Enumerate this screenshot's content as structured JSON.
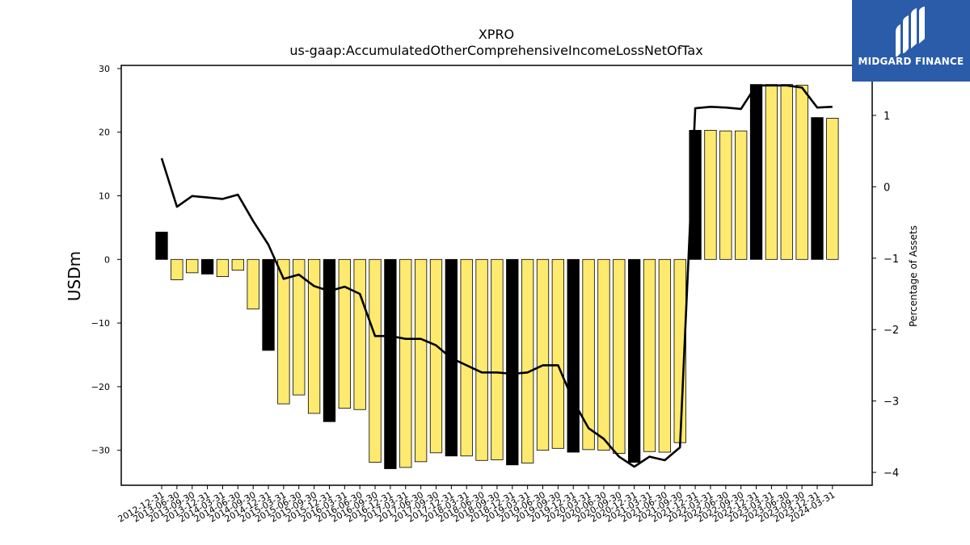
{
  "brand": {
    "name": "MIDGARD FINANCE",
    "color": "#2a5caa"
  },
  "chart_data": {
    "type": "bar",
    "title": "XPRO",
    "subtitle": "us-gaap:AccumulatedOtherComprehensiveIncomeLossNetOfTax",
    "ylabel": "USDm",
    "y2label": "Percentage of Assets",
    "ylim": [
      -35.5,
      30.5
    ],
    "y2lim": [
      -4.18,
      1.7
    ],
    "yticks": [
      30,
      20,
      10,
      0,
      -10,
      -20,
      -30
    ],
    "y2ticks": [
      1,
      0,
      -1,
      -2,
      -3,
      -4
    ],
    "grid": false,
    "categories": [
      "2012-12-31",
      "2013-06-30",
      "2013-09-30",
      "2013-12-31",
      "2014-03-31",
      "2014-06-30",
      "2014-09-30",
      "2014-12-31",
      "2015-03-31",
      "2015-06-30",
      "2015-09-30",
      "2015-12-31",
      "2016-03-31",
      "2016-06-30",
      "2016-09-30",
      "2016-12-31",
      "2017-03-31",
      "2017-06-30",
      "2017-09-30",
      "2017-12-31",
      "2018-03-31",
      "2018-06-30",
      "2018-09-30",
      "2018-12-31",
      "2019-03-31",
      "2019-06-30",
      "2019-09-30",
      "2019-12-31",
      "2020-03-31",
      "2020-06-30",
      "2020-09-30",
      "2020-12-31",
      "2021-03-31",
      "2021-06-30",
      "2021-09-30",
      "2021-12-31",
      "2022-03-31",
      "2022-06-30",
      "2022-09-30",
      "2022-12-31",
      "2023-03-31",
      "2023-06-30",
      "2023-09-30",
      "2023-12-31",
      "2024-03-31"
    ],
    "values": [
      4.3,
      -3.2,
      -2.1,
      -2.3,
      -2.7,
      -1.7,
      -7.8,
      -14.3,
      -22.7,
      -21.3,
      -24.2,
      -25.5,
      -23.4,
      -23.6,
      -31.9,
      -32.9,
      -32.7,
      -31.8,
      -30.4,
      -30.9,
      -30.9,
      -31.6,
      -31.5,
      -32.3,
      -32.0,
      -30.0,
      -29.7,
      -30.3,
      -29.9,
      -30.0,
      -30.5,
      -31.9,
      -30.2,
      -30.3,
      -28.8,
      20.3,
      20.3,
      20.2,
      20.2,
      27.5,
      27.5,
      27.5,
      27.4,
      22.3,
      22.2
    ],
    "highlight": [
      true,
      false,
      false,
      true,
      false,
      false,
      false,
      true,
      false,
      false,
      false,
      true,
      false,
      false,
      false,
      true,
      false,
      false,
      false,
      true,
      false,
      false,
      false,
      true,
      false,
      false,
      false,
      true,
      false,
      false,
      false,
      true,
      false,
      false,
      false,
      true,
      false,
      false,
      false,
      true,
      false,
      false,
      false,
      true,
      false
    ],
    "bar_colors": {
      "highlight": "#000000",
      "normal": "#fdea6e"
    },
    "line": {
      "name": "Percentage of Assets",
      "color": "#000000",
      "values": [
        0.4,
        -0.28,
        -0.13,
        -0.15,
        -0.17,
        -0.11,
        -0.48,
        -0.81,
        -1.29,
        -1.23,
        -1.39,
        -1.46,
        -1.4,
        -1.5,
        -2.09,
        -2.09,
        -2.13,
        -2.13,
        -2.22,
        -2.4,
        -2.5,
        -2.6,
        -2.6,
        -2.62,
        -2.6,
        -2.5,
        -2.5,
        -3.0,
        -3.38,
        -3.53,
        -3.78,
        -3.92,
        -3.78,
        -3.83,
        -3.65,
        1.1,
        1.12,
        1.11,
        1.09,
        1.42,
        1.42,
        1.42,
        1.39,
        1.11,
        1.12
      ]
    }
  }
}
